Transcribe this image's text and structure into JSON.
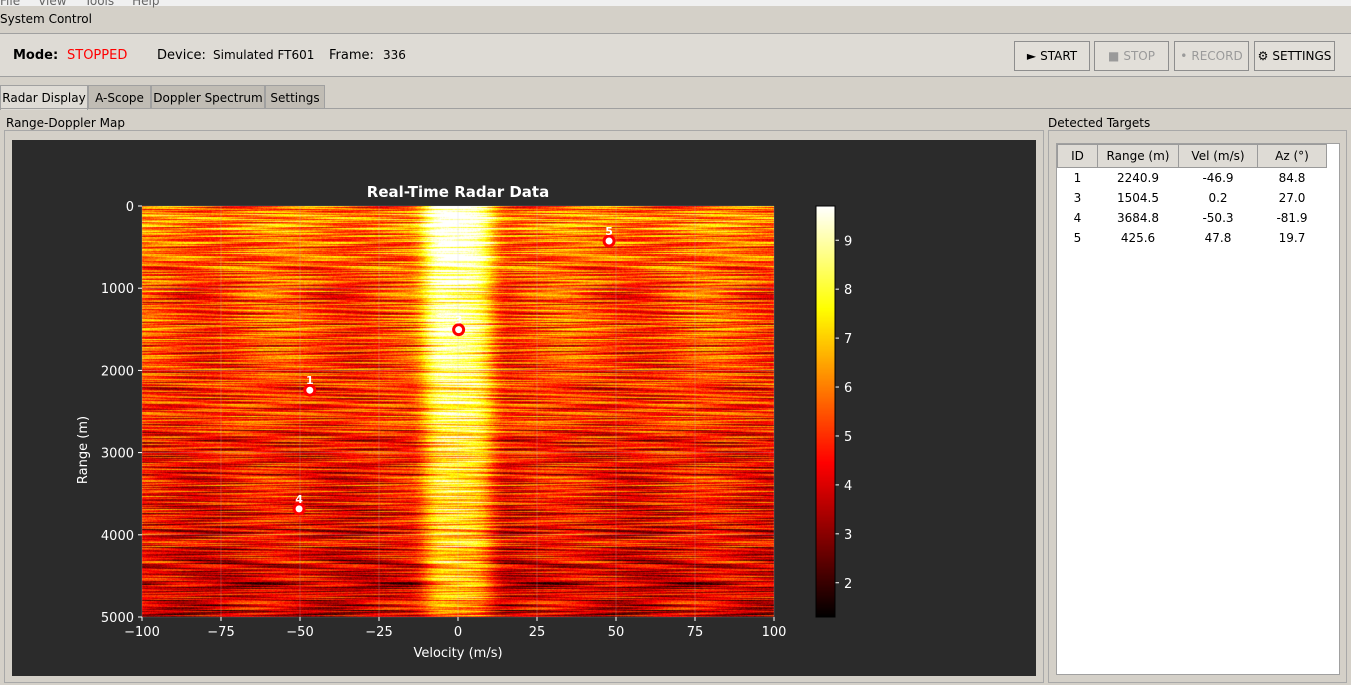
{
  "menu": [
    "File",
    "View",
    "Tools",
    "Help"
  ],
  "system_group": "System Control",
  "status": {
    "mode_label": "Mode:",
    "mode_value": "STOPPED",
    "device_label": "Device:",
    "device_value": "Simulated FT601",
    "frame_label": "Frame:",
    "frame_value": "336"
  },
  "buttons": {
    "start": "START",
    "stop": "STOP",
    "record": "RECORD",
    "settings": "SETTINGS"
  },
  "tabs": [
    "Radar Display",
    "A-Scope",
    "Doppler Spectrum",
    "Settings"
  ],
  "map_group": "Range-Doppler Map",
  "targets_group": "Detected Targets",
  "colors": {
    "mode_stopped": "#ff0000",
    "plot_bg": "#2b2b2b",
    "marker": "#ff0000"
  },
  "table": {
    "headers": [
      "ID",
      "Range (m)",
      "Vel (m/s)",
      "Az (°)"
    ],
    "rows": [
      [
        "1",
        "2240.9",
        "-46.9",
        "84.8"
      ],
      [
        "3",
        "1504.5",
        "0.2",
        "27.0"
      ],
      [
        "4",
        "3684.8",
        "-50.3",
        "-81.9"
      ],
      [
        "5",
        "425.6",
        "47.8",
        "19.7"
      ]
    ]
  },
  "chart_data": {
    "type": "heatmap",
    "title": "Real-Time Radar Data",
    "xlabel": "Velocity (m/s)",
    "ylabel": "Range (m)",
    "xlim": [
      -100,
      100
    ],
    "ylim": [
      5000,
      0
    ],
    "xticks": [
      "−100",
      "−75",
      "−50",
      "−25",
      "0",
      "25",
      "50",
      "75",
      "100"
    ],
    "yticks": [
      "0",
      "1000",
      "2000",
      "3000",
      "4000",
      "5000"
    ],
    "colormap": "hot",
    "colorbar": {
      "range": [
        1.3,
        9.7
      ],
      "ticks": [
        "2",
        "3",
        "4",
        "5",
        "6",
        "7",
        "8",
        "9"
      ]
    },
    "grid": true,
    "targets": [
      {
        "id": "1",
        "range": 2240.9,
        "velocity": -46.9
      },
      {
        "id": "3",
        "range": 1504.5,
        "velocity": 0.2
      },
      {
        "id": "4",
        "range": 3684.8,
        "velocity": -50.3
      },
      {
        "id": "5",
        "range": 425.6,
        "velocity": 47.8
      }
    ]
  }
}
